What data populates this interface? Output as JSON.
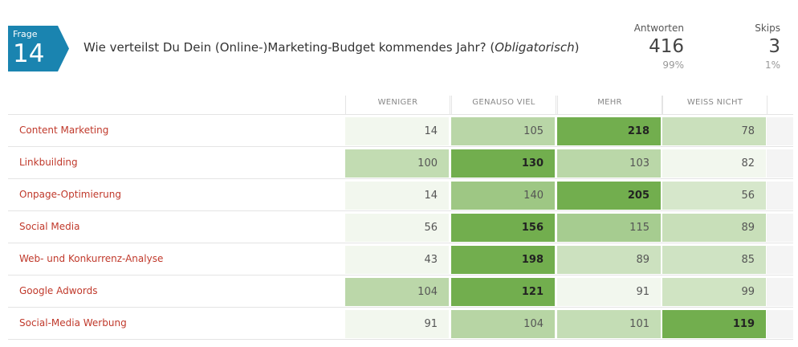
{
  "question": {
    "frage_label": "Frage",
    "number": "14",
    "text": "Wie verteilst Du Dein (Online-)Marketing-Budget kommendes Jahr? (",
    "qualifier": "Obligatorisch",
    "closing": ")"
  },
  "stats": {
    "answers": {
      "label": "Antworten",
      "value": "416",
      "percent": "99%"
    },
    "skips": {
      "label": "Skips",
      "value": "3",
      "percent": "1%"
    }
  },
  "columns": [
    "WENIGER",
    "GENAUSO VIEL",
    "MEHR",
    "WEISS NICHT"
  ],
  "rows": [
    {
      "label": "Content Marketing",
      "values": [
        14,
        105,
        218,
        78
      ]
    },
    {
      "label": "Linkbuilding",
      "values": [
        100,
        130,
        103,
        82
      ]
    },
    {
      "label": "Onpage-Optimierung",
      "values": [
        14,
        140,
        205,
        56
      ]
    },
    {
      "label": "Social Media",
      "values": [
        56,
        156,
        115,
        89
      ]
    },
    {
      "label": "Web- und Konkurrenz-Analyse",
      "values": [
        43,
        198,
        89,
        85
      ]
    },
    {
      "label": "Google Adwords",
      "values": [
        104,
        121,
        91,
        99
      ]
    },
    {
      "label": "Social-Media Werbung",
      "values": [
        91,
        104,
        101,
        119
      ]
    }
  ],
  "colors": {
    "badge": "#1a84b0",
    "label": "#c0392b",
    "heat_low": "#f2f7ee",
    "heat_high": "#72ae4e"
  }
}
